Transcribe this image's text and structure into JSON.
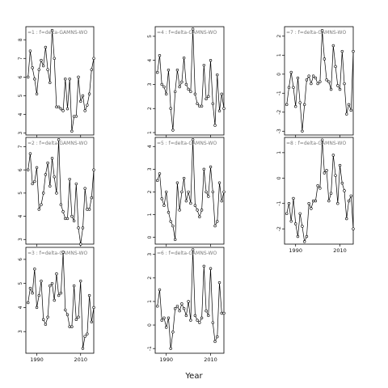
{
  "xlabel": "Year",
  "chart_data": {
    "type": "line",
    "xlabel": "Year",
    "x_ticks": [
      1990,
      2010
    ],
    "x_range": [
      1985,
      2016
    ],
    "panels": [
      {
        "title": "=1 : f=delta-GAMNS-WO",
        "yticks": [
          3,
          4,
          5,
          6,
          7,
          8
        ],
        "ylim": [
          2.9,
          8.7
        ],
        "x": [
          1986,
          1987,
          1988,
          1989,
          1990,
          1991,
          1992,
          1993,
          1994,
          1995,
          1996,
          1997,
          1998,
          1999,
          2000,
          2001,
          2002,
          2003,
          2004,
          2005,
          2006,
          2007,
          2008,
          2009,
          2010,
          2011,
          2012,
          2013,
          2014,
          2015,
          2016
        ],
        "y": [
          6.0,
          7.4,
          6.5,
          5.9,
          5.1,
          6.4,
          6.9,
          6.6,
          7.6,
          6.4,
          5.7,
          8.5,
          7.0,
          4.4,
          4.4,
          4.3,
          4.2,
          5.9,
          4.3,
          5.9,
          3.1,
          3.9,
          3.9,
          6.0,
          4.7,
          5.0,
          4.2,
          4.5,
          5.1,
          6.4,
          7.0
        ]
      },
      {
        "title": "=2 : f=delta-GAMNS-WO",
        "yticks": [
          3,
          4,
          5,
          6,
          7
        ],
        "ylim": [
          2.8,
          7.4
        ],
        "x": [
          1986,
          1987,
          1988,
          1989,
          1990,
          1991,
          1992,
          1993,
          1994,
          1995,
          1996,
          1997,
          1998,
          1999,
          2000,
          2001,
          2002,
          2003,
          2004,
          2005,
          2006,
          2007,
          2008,
          2009,
          2010,
          2011,
          2012,
          2013,
          2014,
          2015,
          2016
        ],
        "y": [
          6.0,
          6.7,
          5.4,
          5.5,
          6.1,
          4.3,
          4.5,
          5.0,
          5.8,
          6.3,
          5.3,
          6.5,
          5.7,
          5.0,
          7.3,
          4.5,
          4.2,
          3.9,
          3.9,
          5.6,
          4.0,
          3.8,
          5.4,
          3.5,
          2.8,
          3.5,
          5.2,
          4.3,
          4.3,
          4.8,
          6.0
        ]
      },
      {
        "title": "=3 : f=delta-GAMNS-WO",
        "yticks": [
          3,
          4,
          5,
          6
        ],
        "ylim": [
          2.1,
          6.5
        ],
        "x": [
          1986,
          1987,
          1988,
          1989,
          1990,
          1991,
          1992,
          1993,
          1994,
          1995,
          1996,
          1997,
          1998,
          1999,
          2000,
          2001,
          2002,
          2003,
          2004,
          2005,
          2006,
          2007,
          2008,
          2009,
          2010,
          2011,
          2012,
          2013,
          2014,
          2015,
          2016
        ],
        "y": [
          4.2,
          4.8,
          4.6,
          5.6,
          4.0,
          4.5,
          5.1,
          3.5,
          3.3,
          3.6,
          4.9,
          5.0,
          4.3,
          5.4,
          4.5,
          4.6,
          6.3,
          3.9,
          3.7,
          3.2,
          3.2,
          4.9,
          3.5,
          3.6,
          5.1,
          2.3,
          2.8,
          2.9,
          4.5,
          3.4,
          4.0
        ]
      },
      {
        "title": "=4 : f=delta-GAMNS-WO",
        "yticks": [
          1,
          2,
          3,
          4,
          5
        ],
        "ylim": [
          0.9,
          5.4
        ],
        "x": [
          1986,
          1987,
          1988,
          1989,
          1990,
          1991,
          1992,
          1993,
          1994,
          1995,
          1996,
          1997,
          1998,
          1999,
          2000,
          2001,
          2002,
          2003,
          2004,
          2005,
          2006,
          2007,
          2008,
          2009,
          2010,
          2011,
          2012,
          2013,
          2014,
          2015,
          2016
        ],
        "y": [
          3.5,
          4.2,
          3.0,
          2.9,
          2.6,
          3.6,
          2.0,
          1.1,
          2.7,
          3.6,
          2.9,
          3.1,
          4.1,
          3.0,
          2.8,
          2.7,
          5.3,
          2.6,
          2.2,
          2.1,
          2.1,
          3.8,
          2.4,
          2.5,
          4.0,
          2.2,
          1.3,
          3.4,
          1.9,
          2.6,
          2.0
        ]
      },
      {
        "title": "=5 : f=delta-GAMNS-WO",
        "yticks": [
          0,
          1,
          2,
          3,
          4
        ],
        "ylim": [
          -0.3,
          4.4
        ],
        "x": [
          1986,
          1987,
          1988,
          1989,
          1990,
          1991,
          1992,
          1993,
          1994,
          1995,
          1996,
          1997,
          1998,
          1999,
          2000,
          2001,
          2002,
          2003,
          2004,
          2005,
          2006,
          2007,
          2008,
          2009,
          2010,
          2011,
          2012,
          2013,
          2014,
          2015,
          2016
        ],
        "y": [
          2.5,
          2.8,
          1.7,
          1.4,
          2.0,
          1.1,
          0.7,
          0.5,
          -0.1,
          2.4,
          1.2,
          2.0,
          2.6,
          1.6,
          2.0,
          1.5,
          4.3,
          1.4,
          1.2,
          0.9,
          1.2,
          3.0,
          2.0,
          1.8,
          3.1,
          2.0,
          0.5,
          0.7,
          2.4,
          1.6,
          2.0
        ]
      },
      {
        "title": "=6 : f=delta-GAMNS-WO",
        "yticks": [
          -1,
          0,
          1,
          2,
          3
        ],
        "ylim": [
          -1.2,
          3.3
        ],
        "x": [
          1986,
          1987,
          1988,
          1989,
          1990,
          1991,
          1992,
          1993,
          1994,
          1995,
          1996,
          1997,
          1998,
          1999,
          2000,
          2001,
          2002,
          2003,
          2004,
          2005,
          2006,
          2007,
          2008,
          2009,
          2010,
          2011,
          2012,
          2013,
          2014,
          2015,
          2016
        ],
        "y": [
          0.8,
          1.5,
          0.2,
          0.3,
          -0.1,
          0.3,
          -1.0,
          -0.3,
          0.7,
          0.8,
          0.6,
          0.9,
          0.7,
          0.4,
          1.0,
          0.2,
          3.2,
          0.4,
          0.2,
          0.1,
          0.3,
          2.5,
          0.6,
          0.4,
          2.4,
          0.1,
          -0.7,
          -0.5,
          1.8,
          0.5,
          0.5
        ]
      },
      {
        "title": "=7 : f=delta-GAMNS-WO",
        "yticks": [
          -3,
          -2,
          -1,
          0,
          1,
          2
        ],
        "ylim": [
          -3.2,
          2.5
        ],
        "x": [
          1986,
          1987,
          1988,
          1989,
          1990,
          1991,
          1992,
          1993,
          1994,
          1995,
          1996,
          1997,
          1998,
          1999,
          2000,
          2001,
          2002,
          2003,
          2004,
          2005,
          2006,
          2007,
          2008,
          2009,
          2010,
          2011,
          2012,
          2013,
          2014,
          2015,
          2016
        ],
        "y": [
          -1.6,
          -0.7,
          0.1,
          -0.7,
          -1.7,
          -0.2,
          -1.5,
          -3.0,
          -1.6,
          -0.3,
          -0.1,
          -0.5,
          -0.1,
          -0.2,
          -0.5,
          -0.4,
          2.3,
          0.8,
          -0.3,
          -0.4,
          -0.8,
          1.5,
          0.4,
          -0.6,
          -0.8,
          1.2,
          -0.5,
          -2.1,
          -1.6,
          -1.9,
          1.2
        ]
      },
      {
        "title": "=8 : f=delta-GAMNS-WO",
        "yticks": [
          -2,
          -1,
          0,
          1
        ],
        "ylim": [
          -2.6,
          1.6
        ],
        "x": [
          1986,
          1987,
          1988,
          1989,
          1990,
          1991,
          1992,
          1993,
          1994,
          1995,
          1996,
          1997,
          1998,
          1999,
          2000,
          2001,
          2002,
          2003,
          2004,
          2005,
          2006,
          2007,
          2008,
          2009,
          2010,
          2011,
          2012,
          2013,
          2014,
          2015,
          2016
        ],
        "y": [
          -1.4,
          -1.0,
          -1.7,
          -0.8,
          -1.8,
          -2.3,
          -1.4,
          -1.9,
          -2.5,
          -2.3,
          -1.0,
          -1.2,
          -0.9,
          -0.9,
          -0.3,
          -0.4,
          1.5,
          0.2,
          0.3,
          -0.9,
          -0.6,
          0.9,
          0.1,
          -1.0,
          0.5,
          -0.2,
          -0.5,
          -1.6,
          -0.9,
          -0.7,
          -2.0
        ]
      }
    ]
  }
}
